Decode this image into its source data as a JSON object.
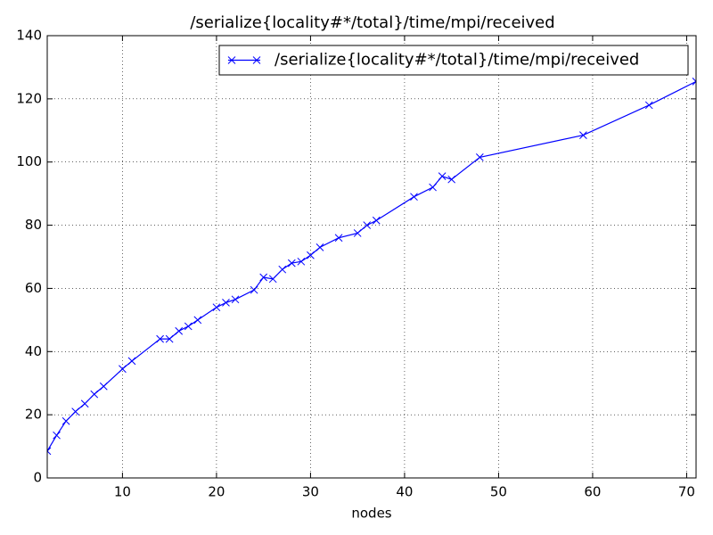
{
  "chart_data": {
    "type": "line",
    "title": "/serialize{locality#*/total}/time/mpi/received",
    "x_label": "nodes",
    "x": [
      2,
      3,
      4,
      5,
      6,
      7,
      8,
      10,
      11,
      14,
      15,
      16,
      17,
      18,
      20,
      21,
      22,
      24,
      25,
      26,
      27,
      28,
      29,
      30,
      31,
      33,
      35,
      36,
      37,
      41,
      43,
      44,
      45,
      48,
      59,
      66,
      71
    ],
    "series": [
      {
        "name": "/serialize{locality#*/total}/time/mpi/received",
        "color": "#0000ff",
        "values": [
          8.5,
          13.5,
          18,
          21,
          23.5,
          26.5,
          29,
          34.5,
          37,
          44,
          44,
          46.5,
          48,
          50,
          54,
          55.5,
          56.5,
          59.5,
          63.5,
          63,
          66,
          68,
          68.5,
          70.5,
          73,
          76,
          77.5,
          80,
          81.5,
          89,
          92,
          95.5,
          94.5,
          101.5,
          108.5,
          118,
          125.5
        ]
      }
    ],
    "xlim": [
      2,
      71
    ],
    "ylim": [
      0,
      140
    ],
    "xticks": [
      10,
      20,
      30,
      40,
      50,
      60,
      70
    ],
    "yticks": [
      0,
      20,
      40,
      60,
      80,
      100,
      120,
      140
    ],
    "grid": true,
    "legend": "upper right"
  }
}
